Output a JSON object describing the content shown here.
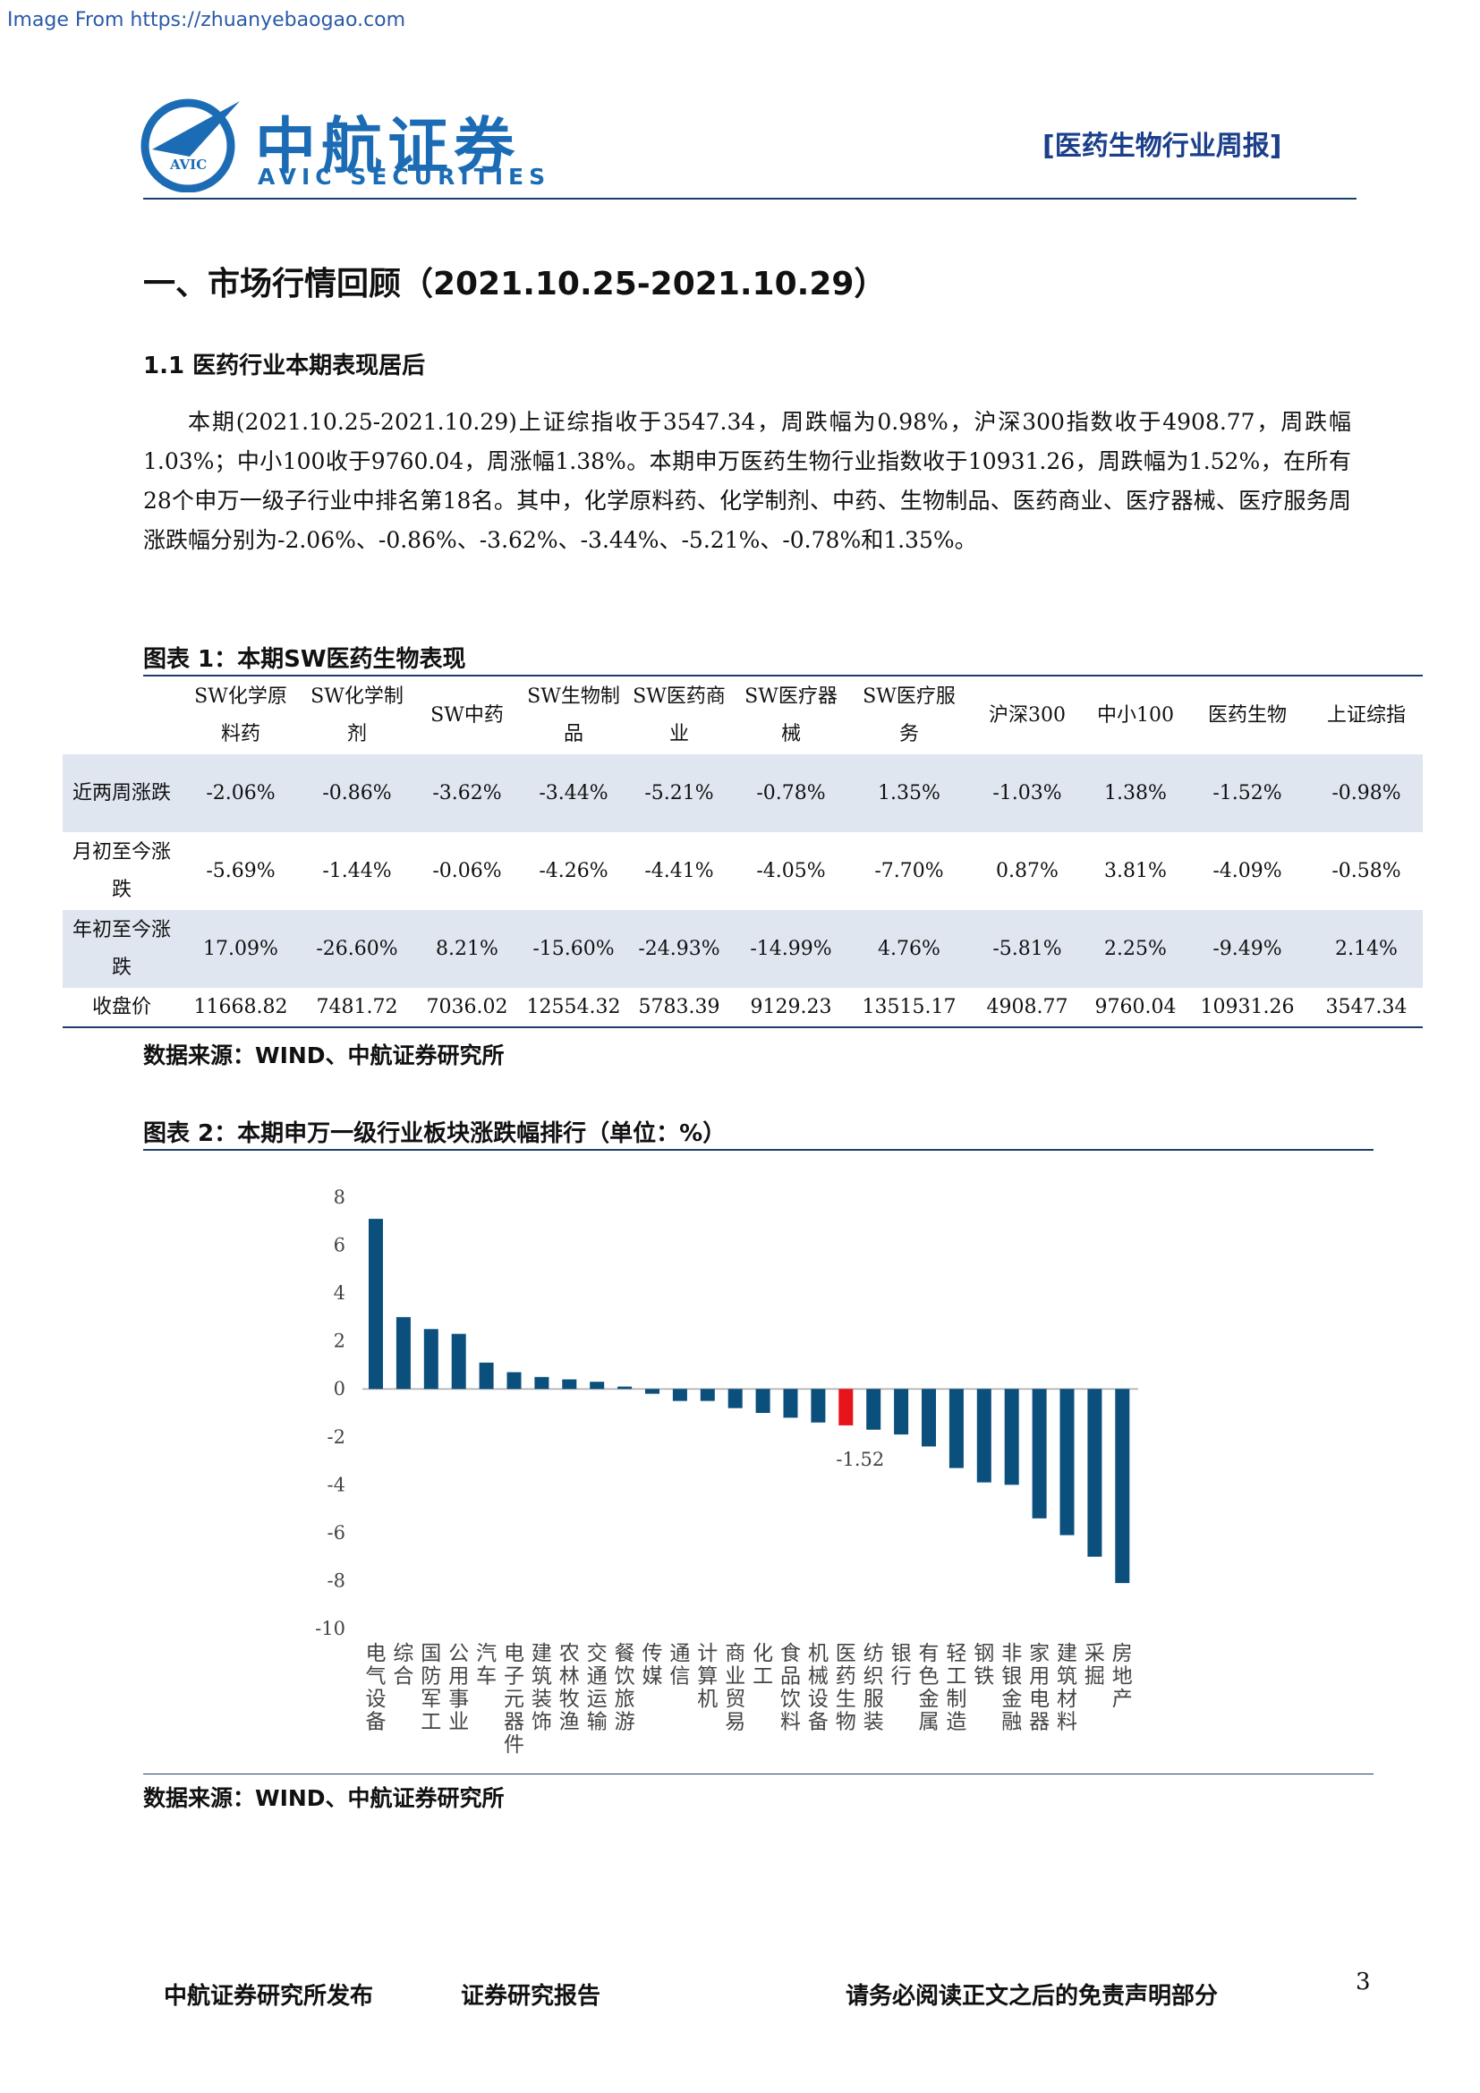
{
  "source_note": "Image From https://zhuanyebaogao.com",
  "header": {
    "logo_cn": "中航证券",
    "logo_en": "AVIC SECURITIES",
    "logo_mark": "AVIC",
    "report_type": "[医药生物行业周报]"
  },
  "section_title": "一、市场行情回顾（2021.10.25-2021.10.29）",
  "subsection_title": "1.1 医药行业本期表现居后",
  "paragraph": "本期(2021.10.25-2021.10.29)上证综指收于3547.34，周跌幅为0.98%，沪深300指数收于4908.77，周跌幅1.03%；中小100收于9760.04，周涨幅1.38%。本期申万医药生物行业指数收于10931.26，周跌幅为1.52%，在所有28个申万一级子行业中排名第18名。其中，化学原料药、化学制剂、中药、生物制品、医药商业、医疗器械、医疗服务周涨跌幅分别为-2.06%、-0.86%、-3.62%、-3.44%、-5.21%、-0.78%和1.35%。",
  "table": {
    "title": "图表 1：本期SW医药生物表现",
    "columns": [
      "SW化学原料药",
      "SW化学制剂",
      "SW中药",
      "SW生物制品",
      "SW医药商业",
      "SW医疗器械",
      "SW医疗服务",
      "沪深300",
      "中小100",
      "医药生物",
      "上证综指"
    ],
    "rows": [
      [
        "近两周涨跌",
        "-2.06%",
        "-0.86%",
        "-3.62%",
        "-3.44%",
        "-5.21%",
        "-0.78%",
        "1.35%",
        "-1.03%",
        "1.38%",
        "-1.52%",
        "-0.98%"
      ],
      [
        "月初至今涨跌",
        "-5.69%",
        "-1.44%",
        "-0.06%",
        "-4.26%",
        "-4.41%",
        "-4.05%",
        "-7.70%",
        "0.87%",
        "3.81%",
        "-4.09%",
        "-0.58%"
      ],
      [
        "年初至今涨跌",
        "17.09%",
        "-26.60%",
        "8.21%",
        "-15.60%",
        "-24.93%",
        "-14.99%",
        "4.76%",
        "-5.81%",
        "2.25%",
        "-9.49%",
        "2.14%"
      ],
      [
        "收盘价",
        "11668.82",
        "7481.72",
        "7036.02",
        "12554.32",
        "5783.39",
        "9129.23",
        "13515.17",
        "4908.77",
        "9760.04",
        "10931.26",
        "3547.34"
      ]
    ],
    "source": "数据来源：WIND、中航证券研究所"
  },
  "chart_data": {
    "type": "bar",
    "title": "图表 2：本期申万一级行业板块涨跌幅排行（单位：%）",
    "categories": [
      "电气设备",
      "综合",
      "国防军工",
      "公用事业",
      "汽车",
      "电子元器件",
      "建筑装饰",
      "农林牧渔",
      "交通运输",
      "餐饮旅游",
      "传媒",
      "通信",
      "计算机",
      "商业贸易",
      "化工",
      "食品饮料",
      "机械设备",
      "医药生物",
      "纺织服装",
      "银行",
      "有色金属",
      "轻工制造",
      "钢铁",
      "非银金融",
      "家用电器",
      "建筑材料",
      "采掘",
      "房地产"
    ],
    "values": [
      7.1,
      3.0,
      2.5,
      2.3,
      1.1,
      0.7,
      0.5,
      0.4,
      0.3,
      0.1,
      -0.2,
      -0.5,
      -0.5,
      -0.8,
      -1.0,
      -1.2,
      -1.4,
      -1.52,
      -1.7,
      -1.9,
      -2.4,
      -3.3,
      -3.9,
      -4.0,
      -5.4,
      -6.1,
      -7.0,
      -8.1
    ],
    "colors": [
      "#0b4f7c",
      "#0b4f7c",
      "#0b4f7c",
      "#0b4f7c",
      "#0b4f7c",
      "#0b4f7c",
      "#0b4f7c",
      "#0b4f7c",
      "#0b4f7c",
      "#0b4f7c",
      "#0b4f7c",
      "#0b4f7c",
      "#0b4f7c",
      "#0b4f7c",
      "#0b4f7c",
      "#0b4f7c",
      "#0b4f7c",
      "#e8141b",
      "#0b4f7c",
      "#0b4f7c",
      "#0b4f7c",
      "#0b4f7c",
      "#0b4f7c",
      "#0b4f7c",
      "#0b4f7c",
      "#0b4f7c",
      "#0b4f7c",
      "#0b4f7c"
    ],
    "labeled_index": 17,
    "ylim": [
      -10,
      8
    ],
    "yticks": [
      -10,
      -8,
      -6,
      -4,
      -2,
      0,
      2,
      4,
      6,
      8
    ],
    "source": "数据来源：WIND、中航证券研究所"
  },
  "footer": {
    "publisher": "中航证券研究所发布",
    "report_kind": "证券研究报告",
    "disclaimer": "请务必阅读正文之后的免责声明部分",
    "page": "3"
  }
}
